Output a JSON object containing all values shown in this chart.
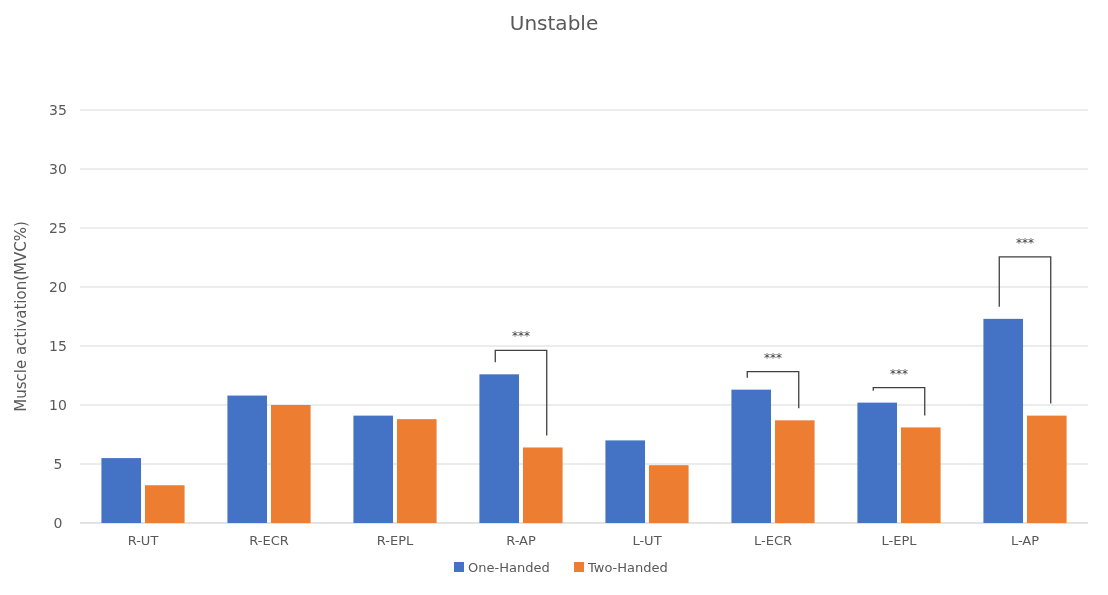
{
  "chart_data": {
    "type": "bar",
    "title": "Unstable",
    "ylabel": "Muscle activation(MVC%)",
    "categories": [
      "R-UT",
      "R-ECR",
      "R-EPL",
      "R-AP",
      "L-UT",
      "L-ECR",
      "L-EPL",
      "L-AP"
    ],
    "series": [
      {
        "name": "One-Handed",
        "color": "#4472c4",
        "values": [
          5.5,
          10.8,
          9.1,
          12.6,
          7.0,
          11.3,
          10.2,
          17.3
        ]
      },
      {
        "name": "Two-Handed",
        "color": "#ed7d31",
        "values": [
          3.2,
          10.0,
          8.8,
          6.4,
          4.9,
          8.7,
          8.1,
          9.1
        ]
      }
    ],
    "ylim": [
      0,
      35
    ],
    "yticks": [
      0,
      5,
      10,
      15,
      20,
      25,
      30,
      35
    ],
    "grid": "y",
    "legend": "bottom",
    "annotations": [
      "***",
      "***",
      "***",
      "***"
    ]
  }
}
